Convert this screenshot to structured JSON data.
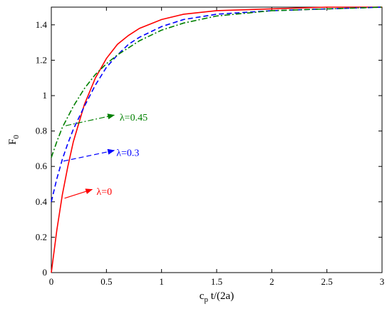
{
  "chart_data": {
    "type": "line",
    "xlabel": "c_p t/(2a)",
    "ylabel": "F_0",
    "xlim": [
      0,
      3
    ],
    "ylim": [
      0,
      1.5
    ],
    "xticks": [
      "0",
      "0.5",
      "1",
      "1.5",
      "2",
      "2.5",
      "3"
    ],
    "yticks": [
      "0",
      "0.2",
      "0.4",
      "0.6",
      "0.8",
      "1",
      "1.2",
      "1.4"
    ],
    "grid": false,
    "series": [
      {
        "name": "λ=0",
        "color": "#ff0000",
        "dash": "solid",
        "x": [
          0,
          0.05,
          0.1,
          0.15,
          0.2,
          0.3,
          0.4,
          0.5,
          0.6,
          0.7,
          0.8,
          1.0,
          1.2,
          1.5,
          2.0,
          2.5,
          3.0
        ],
        "y": [
          0.0,
          0.24,
          0.44,
          0.6,
          0.74,
          0.95,
          1.1,
          1.21,
          1.29,
          1.34,
          1.38,
          1.43,
          1.46,
          1.48,
          1.49,
          1.5,
          1.5
        ]
      },
      {
        "name": "λ=0.3",
        "color": "#0000ff",
        "dash": "dashed",
        "x": [
          0,
          0.05,
          0.1,
          0.15,
          0.2,
          0.3,
          0.4,
          0.5,
          0.6,
          0.7,
          0.8,
          1.0,
          1.2,
          1.5,
          2.0,
          2.5,
          3.0
        ],
        "y": [
          0.4,
          0.53,
          0.64,
          0.73,
          0.81,
          0.94,
          1.06,
          1.16,
          1.23,
          1.29,
          1.33,
          1.39,
          1.43,
          1.46,
          1.48,
          1.49,
          1.5
        ]
      },
      {
        "name": "λ=0.45",
        "color": "#008000",
        "dash": "dashdot",
        "x": [
          0,
          0.05,
          0.1,
          0.15,
          0.2,
          0.3,
          0.4,
          0.5,
          0.6,
          0.7,
          0.8,
          1.0,
          1.2,
          1.5,
          2.0,
          2.5,
          3.0
        ],
        "y": [
          0.65,
          0.74,
          0.82,
          0.88,
          0.94,
          1.04,
          1.12,
          1.18,
          1.23,
          1.27,
          1.31,
          1.37,
          1.41,
          1.45,
          1.48,
          1.49,
          1.5
        ]
      }
    ],
    "annotations": [
      {
        "text": "λ=0.45",
        "color": "#008000",
        "from": [
          0.13,
          0.83
        ],
        "to": [
          0.57,
          0.89
        ],
        "label_at": [
          0.62,
          0.88
        ]
      },
      {
        "text": "λ=0.3",
        "color": "#0000ff",
        "from": [
          0.11,
          0.63
        ],
        "to": [
          0.57,
          0.69
        ],
        "label_at": [
          0.59,
          0.68
        ]
      },
      {
        "text": "λ=0",
        "color": "#ff0000",
        "from": [
          0.12,
          0.42
        ],
        "to": [
          0.37,
          0.47
        ],
        "label_at": [
          0.41,
          0.46
        ]
      }
    ]
  }
}
